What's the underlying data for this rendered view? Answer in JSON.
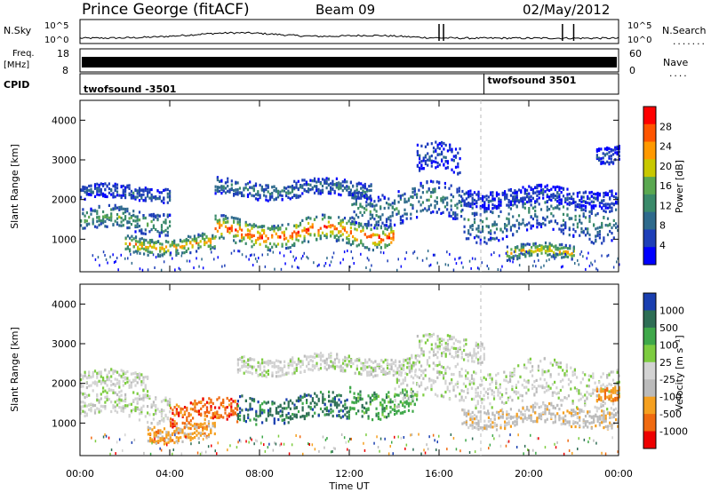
{
  "header": {
    "station": "Prince George (fitACF)",
    "beam": "Beam 09",
    "date": "02/May/2012"
  },
  "top_panels": {
    "nsky_label": "N.Sky",
    "nsky_ticks": [
      "10^5",
      "10^0"
    ],
    "nsearch_label": "N.Search",
    "nsearch_ticks": [
      "10^5",
      "10^0"
    ],
    "freq_label_1": "Freq.",
    "freq_label_2": "[MHz]",
    "freq_ticks": [
      "18",
      "8"
    ],
    "nave_label": "Nave",
    "nave_ticks": [
      "60",
      "0"
    ],
    "cpid_label": "CPID",
    "cpid_segments": [
      {
        "text": "twofsound -3501",
        "start_hour": 0
      },
      {
        "text": "twofsound 3501",
        "start_hour": 18
      }
    ]
  },
  "chart_data": [
    {
      "type": "heatmap",
      "name": "power",
      "ylabel": "Slant Range [km]",
      "yticks": [
        "4000",
        "3000",
        "2000",
        "1000"
      ],
      "ylim": [
        180,
        4500
      ],
      "xlim": [
        0,
        24
      ],
      "colorbar_label": "Power [dB]",
      "colorbar_ticks": [
        "28",
        "24",
        "20",
        "16",
        "12",
        "8",
        "4"
      ],
      "colorbar_range": [
        0,
        30
      ],
      "colors": [
        "#0000ff",
        "#1e3fb8",
        "#2e6a8c",
        "#3a8a6a",
        "#5aa850",
        "#c8c800",
        "#ff9900",
        "#ff5500",
        "#ff0000"
      ],
      "bands": [
        {
          "from": 0,
          "to": 4,
          "center": 1500,
          "width": 400,
          "level": 14
        },
        {
          "from": 0,
          "to": 4,
          "center": 2200,
          "width": 250,
          "level": 8
        },
        {
          "from": 2,
          "to": 6,
          "center": 900,
          "width": 300,
          "level": 22
        },
        {
          "from": 6,
          "to": 14,
          "center": 1200,
          "width": 450,
          "level": 26
        },
        {
          "from": 6,
          "to": 13,
          "center": 2300,
          "width": 300,
          "level": 10
        },
        {
          "from": 12,
          "to": 17,
          "center": 1900,
          "width": 600,
          "level": 12
        },
        {
          "from": 15,
          "to": 17,
          "center": 3000,
          "width": 500,
          "level": 6
        },
        {
          "from": 17,
          "to": 24,
          "center": 1600,
          "width": 700,
          "level": 11
        },
        {
          "from": 19,
          "to": 22,
          "center": 700,
          "width": 250,
          "level": 20
        },
        {
          "from": 17,
          "to": 24,
          "center": 2100,
          "width": 300,
          "level": 6
        },
        {
          "from": 23,
          "to": 24,
          "center": 3200,
          "width": 300,
          "level": 6
        }
      ]
    },
    {
      "type": "heatmap",
      "name": "velocity",
      "ylabel": "Slant Range [km]",
      "yticks": [
        "4000",
        "3000",
        "2000",
        "1000"
      ],
      "ylim": [
        180,
        4500
      ],
      "xlim": [
        0,
        24
      ],
      "xlabel": "Time UT",
      "xticks": [
        "00:00",
        "04:00",
        "08:00",
        "12:00",
        "16:00",
        "20:00",
        "00:00"
      ],
      "colorbar_label": "Velocity [m s⁻¹]",
      "colorbar_ticks": [
        "1000",
        "500",
        "100",
        "25",
        "-25",
        "-100",
        "-500",
        "-1000"
      ],
      "colors": [
        "#1a3fb0",
        "#2e6e55",
        "#3fa84a",
        "#7dcc40",
        "#d3d3d3",
        "#bbbbbb",
        "#f5a020",
        "#f06a10",
        "#ee0000"
      ],
      "bands": [
        {
          "from": 0,
          "to": 4,
          "center": 1500,
          "width": 500,
          "level": 4
        },
        {
          "from": 0,
          "to": 3,
          "center": 2100,
          "width": 300,
          "level": 4
        },
        {
          "from": 3,
          "to": 6,
          "center": 800,
          "width": 300,
          "level": 6
        },
        {
          "from": 4,
          "to": 7,
          "center": 1300,
          "width": 400,
          "level": 7
        },
        {
          "from": 7,
          "to": 12,
          "center": 1400,
          "width": 450,
          "level": 1
        },
        {
          "from": 7,
          "to": 15,
          "center": 2500,
          "width": 300,
          "level": 4
        },
        {
          "from": 12,
          "to": 15,
          "center": 1600,
          "width": 500,
          "level": 2
        },
        {
          "from": 14,
          "to": 24,
          "center": 2000,
          "width": 700,
          "level": 4
        },
        {
          "from": 15,
          "to": 18,
          "center": 2900,
          "width": 400,
          "level": 4
        },
        {
          "from": 17,
          "to": 24,
          "center": 1200,
          "width": 350,
          "level": 5
        },
        {
          "from": 23,
          "to": 24,
          "center": 1800,
          "width": 250,
          "level": 6
        }
      ]
    }
  ]
}
